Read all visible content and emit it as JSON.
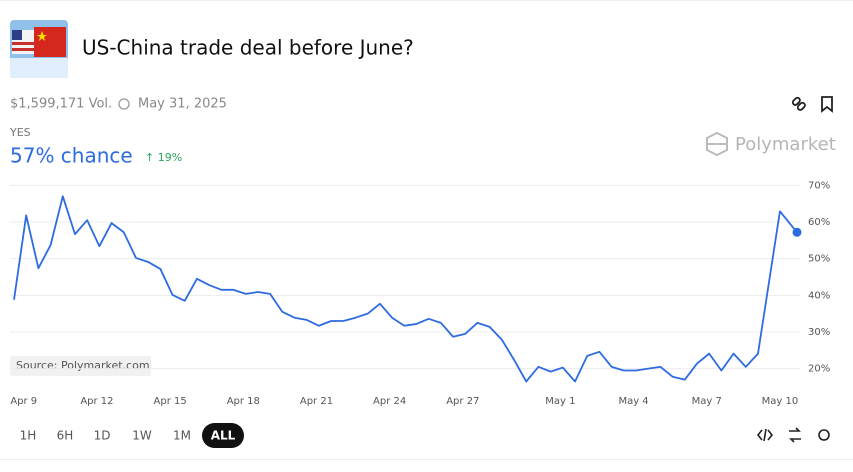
{
  "header": {
    "title": "US-China trade deal before June?",
    "volume": "$1,599,171 Vol.",
    "end_date": "May 31, 2025",
    "outcome": "YES",
    "chance": "57% chance",
    "change": "↑ 19%",
    "brand": "Polymarket"
  },
  "chart_data": {
    "type": "line",
    "source": "Source: Polymarket.com",
    "x": [
      -0.4,
      0.1,
      0.6,
      1.1,
      1.6,
      2.1,
      2.6,
      3.1,
      3.6,
      4.1,
      4.6,
      5.1,
      5.6,
      6.1,
      6.6,
      7.1,
      7.6,
      8.1,
      8.6,
      9.1,
      9.6,
      10.1,
      10.6,
      11.1,
      11.6,
      12.1,
      12.6,
      13.1,
      13.6,
      14.1,
      14.6,
      15.1,
      15.6,
      16.1,
      16.6,
      17.1,
      17.6,
      18.1,
      18.6,
      19.1,
      19.6,
      20.1,
      20.6,
      21.1,
      21.6,
      22.1,
      22.6,
      23.1,
      23.6,
      24.1,
      24.6,
      25.1,
      25.6,
      26.1,
      26.6,
      27.1,
      27.6,
      28.1,
      28.6,
      29.1,
      29.6,
      30.1,
      31.0,
      31.7
    ],
    "series": [
      {
        "name": "YES",
        "color": "#2d6be0",
        "values": [
          38.8,
          61.8,
          47.4,
          53.7,
          67,
          56.7,
          60.5,
          53.4,
          59.7,
          57.2,
          50.2,
          49.1,
          47.2,
          40.1,
          38.5,
          44.5,
          42.8,
          41.5,
          41.5,
          40.4,
          40.9,
          40.4,
          35.5,
          33.9,
          33.3,
          31.7,
          33,
          33,
          33.9,
          35,
          37.7,
          33.9,
          31.7,
          32.2,
          33.6,
          32.5,
          28.7,
          29.5,
          32.5,
          31.4,
          27.9,
          22.4,
          16.5,
          20.5,
          19.2,
          20.3,
          16.5,
          23.5,
          24.6,
          20.5,
          19.5,
          19.5,
          20,
          20.5,
          17.8,
          17,
          21.4,
          24.1,
          19.5,
          24.1,
          20.5,
          24.1,
          62.9,
          57.2
        ]
      }
    ],
    "xlim": [
      -0.4,
      31.7
    ],
    "xticks": [
      {
        "value": 0,
        "label": "Apr 9"
      },
      {
        "value": 3,
        "label": "Apr 12"
      },
      {
        "value": 6,
        "label": "Apr 15"
      },
      {
        "value": 9,
        "label": "Apr 18"
      },
      {
        "value": 12,
        "label": "Apr 21"
      },
      {
        "value": 15,
        "label": "Apr 24"
      },
      {
        "value": 18,
        "label": "Apr 27"
      },
      {
        "value": 22,
        "label": "May 1"
      },
      {
        "value": 25,
        "label": "May 4"
      },
      {
        "value": 28,
        "label": "May 7"
      },
      {
        "value": 31,
        "label": "May 10"
      }
    ],
    "ylim": [
      15,
      72
    ],
    "yticks": [
      {
        "value": 20,
        "label": "20%"
      },
      {
        "value": 30,
        "label": "30%"
      },
      {
        "value": 40,
        "label": "40%"
      },
      {
        "value": 50,
        "label": "50%"
      },
      {
        "value": 60,
        "label": "60%"
      },
      {
        "value": 70,
        "label": "70%"
      }
    ],
    "grid": true
  },
  "controls": {
    "ranges": [
      "1H",
      "6H",
      "1D",
      "1W",
      "1M",
      "ALL"
    ]
  }
}
